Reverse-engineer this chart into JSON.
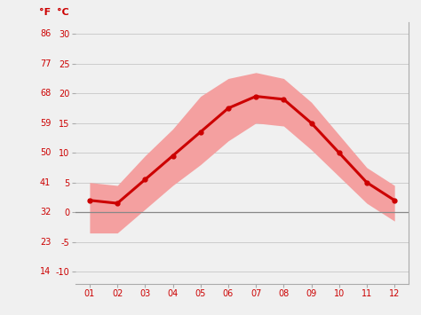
{
  "months": [
    1,
    2,
    3,
    4,
    5,
    6,
    7,
    8,
    9,
    10,
    11,
    12
  ],
  "month_labels": [
    "01",
    "02",
    "03",
    "04",
    "05",
    "06",
    "07",
    "08",
    "09",
    "10",
    "11",
    "12"
  ],
  "mean_temp_c": [
    2.0,
    1.5,
    5.5,
    9.5,
    13.5,
    17.5,
    19.5,
    19.0,
    15.0,
    10.0,
    5.0,
    2.0
  ],
  "max_temp_c": [
    5.0,
    4.5,
    9.5,
    14.0,
    19.5,
    22.5,
    23.5,
    22.5,
    18.5,
    13.0,
    7.5,
    4.5
  ],
  "min_temp_c": [
    -3.5,
    -3.5,
    0.5,
    4.5,
    8.0,
    12.0,
    15.0,
    14.5,
    10.5,
    6.0,
    1.5,
    -1.5
  ],
  "yticks_c": [
    -10,
    -5,
    0,
    5,
    10,
    15,
    20,
    25,
    30
  ],
  "yticks_f": [
    14,
    23,
    32,
    41,
    50,
    59,
    68,
    77,
    86
  ],
  "ylim_c": [
    -12,
    32
  ],
  "xlim": [
    0.5,
    12.5
  ],
  "line_color": "#cc0000",
  "band_color": "#f4a0a0",
  "zero_line_color": "#888888",
  "grid_color": "#cccccc",
  "label_color": "#cc0000",
  "fig_background": "#f0f0f0",
  "spine_color": "#aaaaaa",
  "tick_color": "#aaaaaa"
}
